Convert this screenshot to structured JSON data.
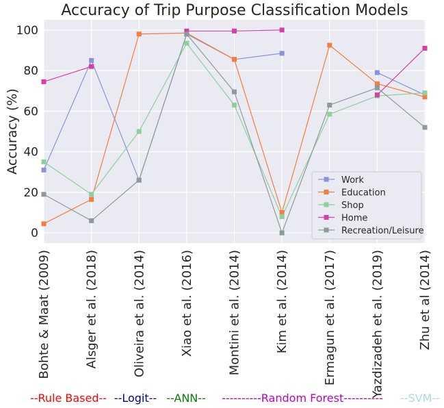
{
  "chart_data": {
    "type": "line",
    "title": "Accuracy of Trip Purpose Classification Models",
    "xlabel": "",
    "ylabel": "Accuracy (%)",
    "ylim": [
      -5,
      105
    ],
    "yticks": [
      0,
      20,
      40,
      60,
      80,
      100
    ],
    "grid": true,
    "legend_position": "lower right",
    "categories": [
      "Bohte & Maat (2009)",
      "Alsger et al. (2018)",
      "Oliveira et al. (2014)",
      "Xiao et al. (2016)",
      "Montini et al. (2014)",
      "Kim et al. (2014)",
      "Ermagun et al. (2017)",
      "Yazdizadeh et al. (2019)",
      "Zhu et al (2014)"
    ],
    "series": [
      {
        "name": "Work",
        "color": "#8b92d6",
        "values": [
          31,
          85,
          26,
          98,
          85.5,
          88.5,
          null,
          79,
          68
        ]
      },
      {
        "name": "Education",
        "color": "#f47d42",
        "values": [
          4.5,
          16.5,
          98,
          98.5,
          85.5,
          10,
          92.5,
          73.5,
          67
        ]
      },
      {
        "name": "Shop",
        "color": "#8fcf9e",
        "values": [
          35,
          19,
          50,
          93.5,
          63,
          8,
          58.5,
          67.5,
          69
        ]
      },
      {
        "name": "Home",
        "color": "#d63fa3",
        "values": [
          74.5,
          82,
          null,
          99.5,
          99.5,
          100,
          null,
          68,
          91
        ]
      },
      {
        "name": "Recreation/Leisure",
        "color": "#8d9a9a",
        "values": [
          19,
          6,
          26,
          98,
          69.5,
          0,
          63,
          71.5,
          52
        ]
      }
    ]
  },
  "groups": [
    {
      "label": "--Rule Based--",
      "color": "#ff0000"
    },
    {
      "label": "--Logit--",
      "color": "#000080"
    },
    {
      "label": "--ANN--",
      "color": "#008000"
    },
    {
      "label": "----------Random Forest----------",
      "color": "#bf00bf"
    },
    {
      "label": "--SVM--",
      "color": "#add8e6"
    }
  ]
}
